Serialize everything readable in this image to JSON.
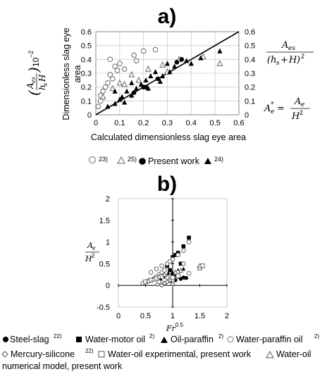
{
  "chart_data": [
    {
      "panel": "a)",
      "type": "scatter",
      "xlabel": "Calculated dimensionless slag eye area",
      "ylabel_left": "Dimensionless slag eye area",
      "ylabel_left_formula": "(A_es/(h_s H)) 10^-2",
      "ylabel_right_formula_1": "A_es/(h_s+H)^2",
      "ylabel_right_formula_2": "A_e* = A_e/H^2",
      "xlim": [
        0,
        0.6
      ],
      "ylim": [
        0,
        0.6
      ],
      "xticks": [
        "0",
        "0.1",
        "0.2",
        "0.3",
        "0.4",
        "0.5",
        "0.6"
      ],
      "yticks": [
        "0",
        "0.1",
        "0.2",
        "0.3",
        "0.4",
        "0.5",
        "0.6"
      ],
      "grid": true,
      "fit_line": {
        "x": [
          0,
          0.6
        ],
        "y": [
          0,
          0.6
        ]
      },
      "legend": [
        "23)",
        "25)",
        "Present work",
        "24)"
      ],
      "series": [
        {
          "name": "23)",
          "marker": "open-circle",
          "points": [
            [
              0.01,
              0.06
            ],
            [
              0.02,
              0.1
            ],
            [
              0.02,
              0.14
            ],
            [
              0.03,
              0.17
            ],
            [
              0.04,
              0.2
            ],
            [
              0.05,
              0.23
            ],
            [
              0.07,
              0.26
            ],
            [
              0.06,
              0.29
            ],
            [
              0.09,
              0.32
            ],
            [
              0.12,
              0.33
            ],
            [
              0.08,
              0.35
            ],
            [
              0.1,
              0.37
            ],
            [
              0.17,
              0.39
            ],
            [
              0.06,
              0.4
            ],
            [
              0.2,
              0.46
            ],
            [
              0.25,
              0.47
            ],
            [
              0.16,
              0.43
            ]
          ]
        },
        {
          "name": "25)",
          "marker": "open-triangle",
          "points": [
            [
              0.03,
              0.13
            ],
            [
              0.07,
              0.19
            ],
            [
              0.1,
              0.23
            ],
            [
              0.15,
              0.29
            ],
            [
              0.22,
              0.33
            ],
            [
              0.28,
              0.36
            ],
            [
              0.35,
              0.4
            ],
            [
              0.52,
              0.37
            ],
            [
              0.45,
              0.42
            ],
            [
              0.3,
              0.31
            ],
            [
              0.18,
              0.25
            ],
            [
              0.12,
              0.22
            ]
          ]
        },
        {
          "name": "Present work",
          "marker": "filled-circle",
          "points": [
            [
              0.16,
              0.16
            ],
            [
              0.2,
              0.2
            ],
            [
              0.21,
              0.2
            ],
            [
              0.26,
              0.26
            ],
            [
              0.34,
              0.38
            ],
            [
              0.36,
              0.4
            ]
          ]
        },
        {
          "name": "24)",
          "marker": "filled-triangle",
          "points": [
            [
              0.05,
              0.06
            ],
            [
              0.08,
              0.08
            ],
            [
              0.1,
              0.11
            ],
            [
              0.11,
              0.13
            ],
            [
              0.13,
              0.17
            ],
            [
              0.15,
              0.14
            ],
            [
              0.17,
              0.19
            ],
            [
              0.19,
              0.22
            ],
            [
              0.21,
              0.25
            ],
            [
              0.23,
              0.28
            ],
            [
              0.25,
              0.31
            ],
            [
              0.28,
              0.28
            ],
            [
              0.31,
              0.31
            ],
            [
              0.33,
              0.35
            ],
            [
              0.38,
              0.39
            ],
            [
              0.44,
              0.41
            ],
            [
              0.52,
              0.46
            ],
            [
              0.15,
              0.23
            ],
            [
              0.08,
              0.17
            ],
            [
              0.12,
              0.09
            ],
            [
              0.22,
              0.19
            ],
            [
              0.27,
              0.24
            ],
            [
              0.3,
              0.37
            ],
            [
              0.4,
              0.37
            ]
          ]
        }
      ]
    },
    {
      "panel": "b)",
      "type": "scatter",
      "xlabel": "Fr^0.5",
      "ylabel": "A_e/H^2",
      "xlim": [
        0,
        2
      ],
      "ylim": [
        -0.5,
        2
      ],
      "xticks": [
        "0",
        "0.5",
        "1",
        "1.5",
        "2"
      ],
      "yticks": [
        "-0.5",
        "0",
        "0.5",
        "1",
        "1.5",
        "2"
      ],
      "grid": false,
      "legend": [
        {
          "label": "Steel-slag",
          "ref": "22)"
        },
        {
          "label": "Water-motor oil",
          "ref": "2)"
        },
        {
          "label": "Oil-paraffin",
          "ref": "2)"
        },
        {
          "label": "Water-paraffin oil",
          "ref": "2)"
        },
        {
          "label": "Mercury-silicone",
          "ref": "22)"
        },
        {
          "label": "Water-oil experimental, present work",
          "ref": ""
        },
        {
          "label": "Water-oil numerical model, present work",
          "ref": ""
        }
      ],
      "series": [
        {
          "name": "Steel-slag",
          "marker": "filled-circle",
          "points": [
            [
              1.05,
              0.12
            ],
            [
              1.15,
              0.15
            ],
            [
              1.2,
              0.18
            ],
            [
              1.25,
              0.17
            ],
            [
              0.97,
              0.13
            ],
            [
              1.1,
              0.2
            ]
          ]
        },
        {
          "name": "Water-motor oil",
          "marker": "filled-square",
          "points": [
            [
              0.9,
              0.45
            ],
            [
              0.95,
              0.35
            ],
            [
              1.0,
              0.65
            ],
            [
              1.05,
              0.7
            ],
            [
              1.1,
              0.75
            ],
            [
              1.2,
              0.9
            ],
            [
              1.3,
              1.1
            ],
            [
              1.0,
              0.25
            ],
            [
              1.15,
              0.5
            ]
          ]
        },
        {
          "name": "Oil-paraffin",
          "marker": "filled-triangle",
          "points": [
            [
              0.78,
              0.15
            ],
            [
              0.85,
              0.2
            ],
            [
              0.92,
              0.28
            ],
            [
              1.0,
              0.3
            ],
            [
              1.1,
              0.35
            ],
            [
              1.2,
              0.38
            ],
            [
              0.95,
              0.1
            ],
            [
              1.05,
              0.22
            ]
          ]
        },
        {
          "name": "Water-paraffin oil",
          "marker": "open-circle",
          "points": [
            [
              0.45,
              0.05
            ],
            [
              0.55,
              0.1
            ],
            [
              0.65,
              0.15
            ],
            [
              0.7,
              0.2
            ],
            [
              0.75,
              0.25
            ],
            [
              0.8,
              0.3
            ],
            [
              0.85,
              0.35
            ],
            [
              0.9,
              0.5
            ],
            [
              0.95,
              0.55
            ],
            [
              1.0,
              0.6
            ],
            [
              1.1,
              0.7
            ],
            [
              1.2,
              0.8
            ],
            [
              1.3,
              1.0
            ],
            [
              0.6,
              0.3
            ],
            [
              0.7,
              0.38
            ],
            [
              0.8,
              0.45
            ],
            [
              0.9,
              0.18
            ],
            [
              1.0,
              0.12
            ],
            [
              1.1,
              0.3
            ],
            [
              1.2,
              0.5
            ],
            [
              1.3,
              0.28
            ],
            [
              0.75,
              0.08
            ],
            [
              0.85,
              0.05
            ]
          ]
        },
        {
          "name": "Mercury-silicone",
          "marker": "open-diamond",
          "points": [
            [
              0.8,
              0.0
            ],
            [
              0.85,
              0.05
            ],
            [
              0.9,
              0.08
            ],
            [
              0.95,
              0.12
            ],
            [
              1.0,
              0.03
            ],
            [
              0.72,
              0.02
            ]
          ]
        },
        {
          "name": "Water-oil experimental, present work",
          "marker": "open-square",
          "points": [
            [
              0.5,
              0.08
            ],
            [
              0.6,
              0.12
            ],
            [
              0.7,
              0.16
            ],
            [
              0.8,
              0.2
            ],
            [
              1.5,
              0.4
            ],
            [
              1.55,
              0.45
            ],
            [
              1.0,
              0.18
            ],
            [
              1.1,
              0.22
            ]
          ]
        },
        {
          "name": "Water-oil numerical model, present work",
          "marker": "open-triangle",
          "points": [
            [
              0.55,
              0.1
            ],
            [
              0.65,
              0.14
            ],
            [
              0.75,
              0.2
            ],
            [
              0.85,
              0.25
            ],
            [
              1.05,
              0.3
            ],
            [
              1.5,
              0.45
            ],
            [
              1.15,
              0.34
            ]
          ]
        }
      ]
    }
  ]
}
